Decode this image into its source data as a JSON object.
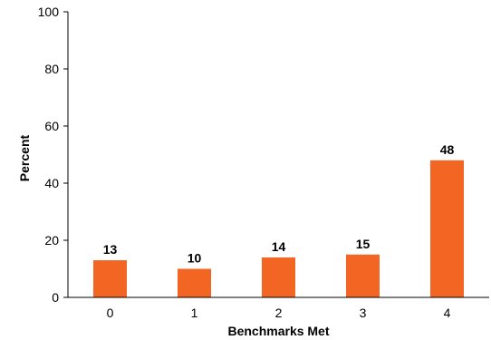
{
  "chart_data": {
    "type": "bar",
    "title": "",
    "xlabel": "Benchmarks Met",
    "ylabel": "Percent",
    "categories": [
      "0",
      "1",
      "2",
      "3",
      "4"
    ],
    "values": [
      13,
      10,
      14,
      15,
      48
    ],
    "data_labels": [
      "13",
      "10",
      "14",
      "15",
      "48"
    ],
    "ylim": [
      0,
      100
    ],
    "yticks": [
      0,
      20,
      40,
      60,
      80,
      100
    ],
    "ytick_labels": [
      "0",
      "20",
      "40",
      "60",
      "80",
      "100"
    ],
    "grid": false,
    "legend": "none",
    "bar_color": "#f26522",
    "axis_color": "#000000"
  }
}
